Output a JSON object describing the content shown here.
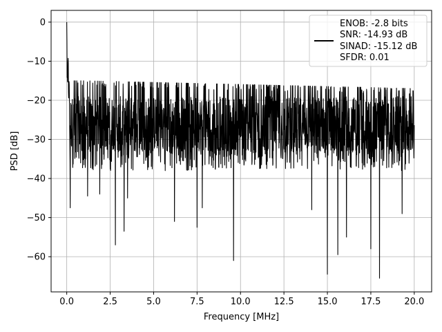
{
  "chart_data": {
    "type": "line",
    "title": "",
    "xlabel": "Frequency [MHz]",
    "ylabel": "PSD [dB]",
    "xlim": [
      -0.9,
      21.0
    ],
    "ylim": [
      -69,
      3
    ],
    "x_ticks": [
      0.0,
      2.5,
      5.0,
      7.5,
      10.0,
      12.5,
      15.0,
      17.5,
      20.0
    ],
    "x_tick_labels": [
      "0.0",
      "2.5",
      "5.0",
      "7.5",
      "10.0",
      "12.5",
      "15.0",
      "17.5",
      "20.0"
    ],
    "y_ticks": [
      0,
      -10,
      -20,
      -30,
      -40,
      -50,
      -60
    ],
    "y_tick_labels": [
      "0",
      "−10",
      "−20",
      "−30",
      "−40",
      "−50",
      "−60"
    ],
    "grid": true,
    "legend_position": "top-right",
    "series": [
      {
        "name": "ENOB: -2.8 bits\nSNR: -14.93 dB\nSINAD: -15.12 dB\nSFDR: 0.01",
        "legend_lines": [
          "ENOB: -2.8 bits",
          "SNR: -14.93 dB",
          "SINAD: -15.12 dB",
          "SFDR: 0.01"
        ],
        "color": "#000000",
        "style": "noisy-spectrum",
        "x_range": [
          0.0,
          20.0
        ],
        "peak": {
          "x": 0.0,
          "y": 0.0
        },
        "envelope": [
          {
            "x": 0.0,
            "y": 0.0
          },
          {
            "x": 0.05,
            "y": -5
          },
          {
            "x": 0.15,
            "y": -12
          },
          {
            "x": 0.3,
            "y": -15
          },
          {
            "x": 1.0,
            "y": -15
          },
          {
            "x": 20.0,
            "y": -17
          }
        ],
        "noise_floor_mean": -26,
        "noise_lower_band": -38,
        "notable_dips": [
          {
            "x": 0.2,
            "y": -47.5
          },
          {
            "x": 1.2,
            "y": -44.5
          },
          {
            "x": 1.9,
            "y": -44
          },
          {
            "x": 2.8,
            "y": -57
          },
          {
            "x": 3.3,
            "y": -53.5
          },
          {
            "x": 3.5,
            "y": -45
          },
          {
            "x": 6.2,
            "y": -51
          },
          {
            "x": 7.5,
            "y": -52.5
          },
          {
            "x": 7.8,
            "y": -47.5
          },
          {
            "x": 9.6,
            "y": -61
          },
          {
            "x": 14.1,
            "y": -48
          },
          {
            "x": 15.0,
            "y": -64.5
          },
          {
            "x": 15.6,
            "y": -59.5
          },
          {
            "x": 16.1,
            "y": -55
          },
          {
            "x": 17.5,
            "y": -58
          },
          {
            "x": 18.0,
            "y": -65.5
          },
          {
            "x": 19.3,
            "y": -49
          }
        ]
      }
    ]
  }
}
